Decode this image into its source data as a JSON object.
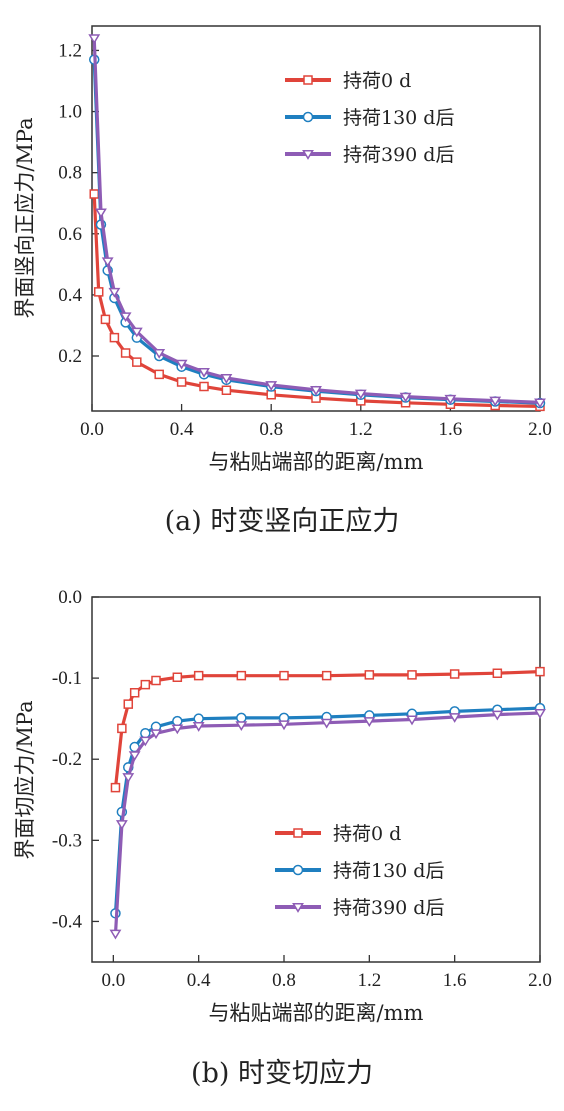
{
  "chart_data": [
    {
      "type": "line",
      "caption": "(a) 时变竖向正应力",
      "xlabel": "与粘贴端部的距离/mm",
      "ylabel": "界面竖向正应力/MPa",
      "xlim": [
        0.0,
        2.0
      ],
      "ylim": [
        0.02,
        1.28
      ],
      "xticks": [
        "0.0",
        "0.4",
        "0.8",
        "1.2",
        "1.6",
        "2.0"
      ],
      "yticks": [
        "0.2",
        "0.4",
        "0.6",
        "0.8",
        "1.0",
        "1.2"
      ],
      "legend_position": "top-right",
      "series": [
        {
          "name": "持荷0 d",
          "color": "#e0443a",
          "marker": "square",
          "x": [
            0.01,
            0.03,
            0.06,
            0.1,
            0.15,
            0.2,
            0.3,
            0.4,
            0.5,
            0.6,
            0.8,
            1.0,
            1.2,
            1.4,
            1.6,
            1.8,
            2.0
          ],
          "y": [
            0.73,
            0.41,
            0.32,
            0.26,
            0.21,
            0.18,
            0.14,
            0.115,
            0.1,
            0.088,
            0.073,
            0.062,
            0.053,
            0.047,
            0.042,
            0.038,
            0.035
          ]
        },
        {
          "name": "持荷130 d后",
          "color": "#1f7fc0",
          "marker": "circle",
          "x": [
            0.01,
            0.04,
            0.07,
            0.1,
            0.15,
            0.2,
            0.3,
            0.4,
            0.5,
            0.6,
            0.8,
            1.0,
            1.2,
            1.4,
            1.6,
            1.8,
            2.0
          ],
          "y": [
            1.17,
            0.63,
            0.48,
            0.39,
            0.31,
            0.26,
            0.2,
            0.165,
            0.14,
            0.122,
            0.1,
            0.085,
            0.073,
            0.064,
            0.057,
            0.051,
            0.046
          ]
        },
        {
          "name": "持荷390 d后",
          "color": "#8e5cb5",
          "marker": "triangle-down",
          "x": [
            0.01,
            0.04,
            0.07,
            0.1,
            0.15,
            0.2,
            0.3,
            0.4,
            0.5,
            0.6,
            0.8,
            1.0,
            1.2,
            1.4,
            1.6,
            1.8,
            2.0
          ],
          "y": [
            1.24,
            0.67,
            0.51,
            0.41,
            0.33,
            0.28,
            0.21,
            0.175,
            0.148,
            0.128,
            0.105,
            0.089,
            0.077,
            0.067,
            0.06,
            0.054,
            0.048
          ]
        }
      ]
    },
    {
      "type": "line",
      "caption": "(b) 时变切应力",
      "xlabel": "与粘贴端部的距离/mm",
      "ylabel": "界面切应力/MPa",
      "xlim": [
        -0.1,
        2.0
      ],
      "ylim": [
        -0.45,
        0.0
      ],
      "xticks": [
        "0.0",
        "0.4",
        "0.8",
        "1.2",
        "1.6",
        "2.0"
      ],
      "yticks": [
        "0.0",
        "-0.1",
        "-0.2",
        "-0.3",
        "-0.4"
      ],
      "legend_position": "bottom-right",
      "series": [
        {
          "name": "持荷0 d",
          "color": "#e0443a",
          "marker": "square",
          "x": [
            0.01,
            0.04,
            0.07,
            0.1,
            0.15,
            0.2,
            0.3,
            0.4,
            0.6,
            0.8,
            1.0,
            1.2,
            1.4,
            1.6,
            1.8,
            2.0
          ],
          "y": [
            -0.235,
            -0.162,
            -0.132,
            -0.118,
            -0.108,
            -0.103,
            -0.099,
            -0.097,
            -0.097,
            -0.097,
            -0.097,
            -0.096,
            -0.096,
            -0.095,
            -0.094,
            -0.092
          ]
        },
        {
          "name": "持荷130 d后",
          "color": "#1f7fc0",
          "marker": "circle",
          "x": [
            0.01,
            0.04,
            0.07,
            0.1,
            0.15,
            0.2,
            0.3,
            0.4,
            0.6,
            0.8,
            1.0,
            1.2,
            1.4,
            1.6,
            1.8,
            2.0
          ],
          "y": [
            -0.39,
            -0.265,
            -0.21,
            -0.185,
            -0.168,
            -0.16,
            -0.153,
            -0.15,
            -0.149,
            -0.149,
            -0.148,
            -0.146,
            -0.144,
            -0.141,
            -0.139,
            -0.137
          ]
        },
        {
          "name": "持荷390 d后",
          "color": "#8e5cb5",
          "marker": "triangle-down",
          "x": [
            0.01,
            0.04,
            0.07,
            0.1,
            0.15,
            0.2,
            0.3,
            0.4,
            0.6,
            0.8,
            1.0,
            1.2,
            1.4,
            1.6,
            1.8,
            2.0
          ],
          "y": [
            -0.415,
            -0.28,
            -0.222,
            -0.195,
            -0.177,
            -0.168,
            -0.162,
            -0.159,
            -0.158,
            -0.157,
            -0.155,
            -0.153,
            -0.151,
            -0.148,
            -0.145,
            -0.143
          ]
        }
      ]
    }
  ]
}
